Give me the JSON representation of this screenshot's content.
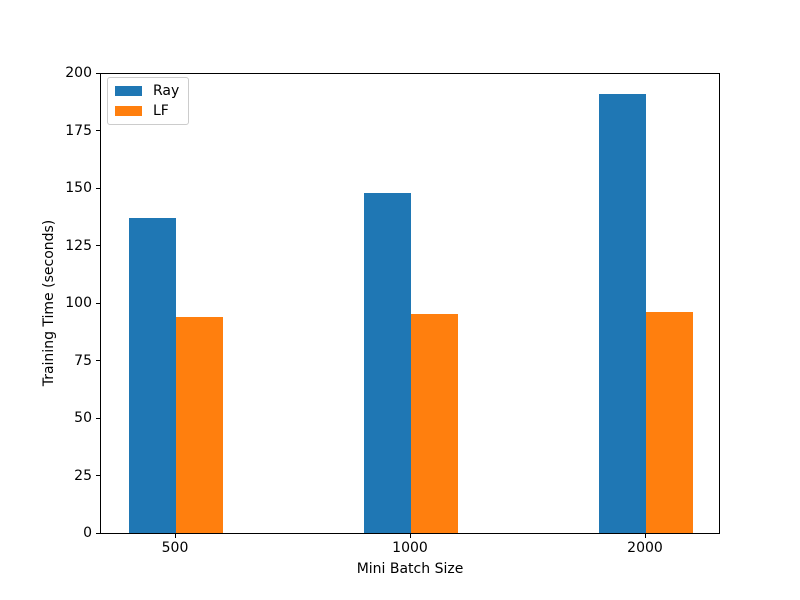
{
  "figure": {
    "background": "#ffffff",
    "text_color": "#000000"
  },
  "chart_data": {
    "type": "bar",
    "title": "",
    "xlabel": "Mini Batch Size",
    "ylabel": "Training Time (seconds)",
    "categories": [
      "500",
      "1000",
      "2000"
    ],
    "series": [
      {
        "name": "Ray",
        "color": "#1f77b4",
        "values": [
          137,
          148,
          191
        ]
      },
      {
        "name": "LF",
        "color": "#ff7f0e",
        "values": [
          94,
          95,
          96
        ]
      }
    ],
    "ylim": [
      0,
      200
    ],
    "yticks": [
      0,
      25,
      50,
      75,
      100,
      125,
      150,
      175,
      200
    ],
    "grid": false,
    "legend_position": "upper left",
    "legend_entries": [
      "Ray",
      "LF"
    ]
  }
}
